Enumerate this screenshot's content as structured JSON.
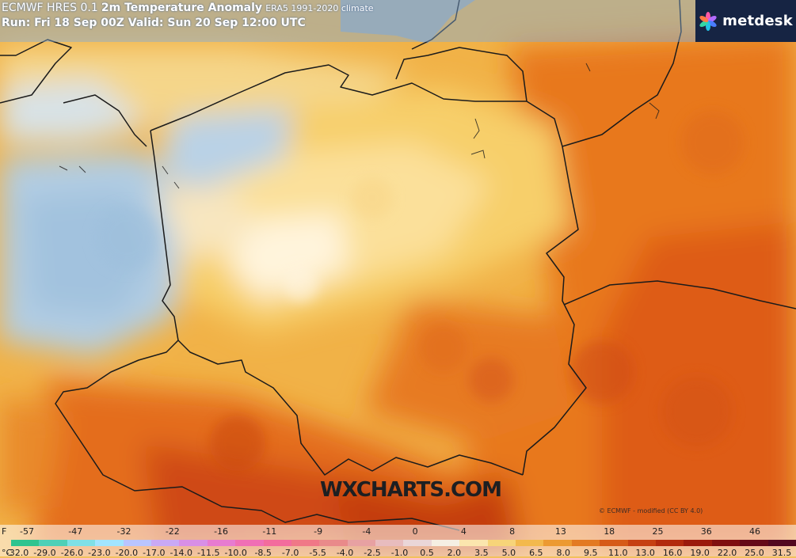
{
  "header": {
    "title_model": "ECMWF HRES 0.1",
    "title_field": "2m Temperature Anomaly",
    "title_climate": "ERA5 1991-2020 climate",
    "run_line": "Run: Fri 18 Sep 00Z Valid: Sun 20 Sep 12:00 UTC"
  },
  "logo": {
    "text": "metdesk",
    "icon": "metdesk-flower-icon"
  },
  "watermark": "WXCHARTS.COM",
  "credit": "© ECMWF - modified (CC BY 4.0)",
  "legend": {
    "f_unit": "F",
    "c_unit": "°C",
    "f_values": [
      "-57",
      "-47",
      "-32",
      "-22",
      "-16",
      "-11",
      "-9",
      "-4",
      "0",
      "4",
      "8",
      "13",
      "18",
      "25",
      "36",
      "46"
    ],
    "c_values": [
      "-32.0",
      "-29.0",
      "-26.0",
      "-23.0",
      "-20.0",
      "-17.0",
      "-14.0",
      "-11.5",
      "-10.0",
      "-8.5",
      "-7.0",
      "-5.5",
      "-4.0",
      "-2.5",
      "-1.0",
      "0.5",
      "2.0",
      "3.5",
      "5.0",
      "6.5",
      "8.0",
      "9.5",
      "11.0",
      "13.0",
      "16.0",
      "19.0",
      "22.0",
      "25.0",
      "31.5"
    ],
    "colors": [
      "#2fc48f",
      "#4fd0b7",
      "#7fe0e6",
      "#a2e5ff",
      "#b9c5ff",
      "#c9a9f5",
      "#d88fe6",
      "#e77bd0",
      "#f06fb5",
      "#f36c9d",
      "#f07887",
      "#e98a8a",
      "#e7a1a2",
      "#e8bcbe",
      "#ead6d8",
      "#f5efe3",
      "#fbe6ae",
      "#f7d479",
      "#f3b94d",
      "#ec9a32",
      "#e37a22",
      "#d65a18",
      "#c64012",
      "#b22a0d",
      "#9b1a0c",
      "#7f0f10",
      "#650a18",
      "#520820"
    ]
  },
  "map": {
    "region": "Poland and surroundings",
    "colors": {
      "cold_anomaly": "#a9c9e3",
      "neutral": "#fff3d0",
      "warm": "#f3b348",
      "hot": "#e0601a",
      "very_hot": "#c23a10",
      "sea": "#7fa8da",
      "borders": "#1a1a1a"
    }
  }
}
